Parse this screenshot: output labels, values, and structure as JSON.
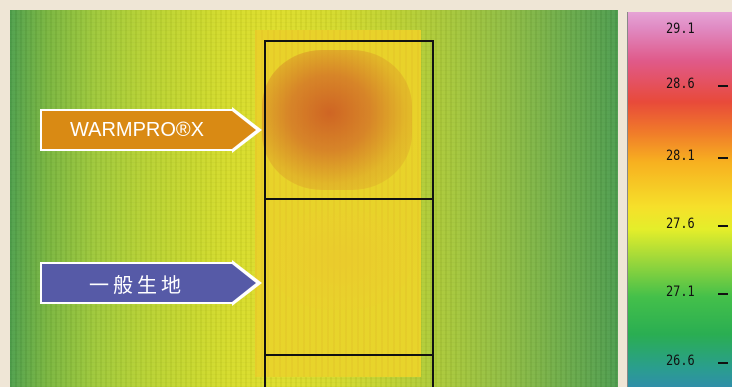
{
  "labels": {
    "top": "WARMPRO®X",
    "bottom": "一般生地"
  },
  "scale": {
    "ticks": [
      "29.1",
      "28.6",
      "28.1",
      "27.6",
      "27.1",
      "26.6"
    ]
  },
  "colors": {
    "label_orange": "#d98a14",
    "label_purple": "#565aa7",
    "scale_top": "#e6a4d6",
    "scale_bottom": "#2f8fa8"
  }
}
